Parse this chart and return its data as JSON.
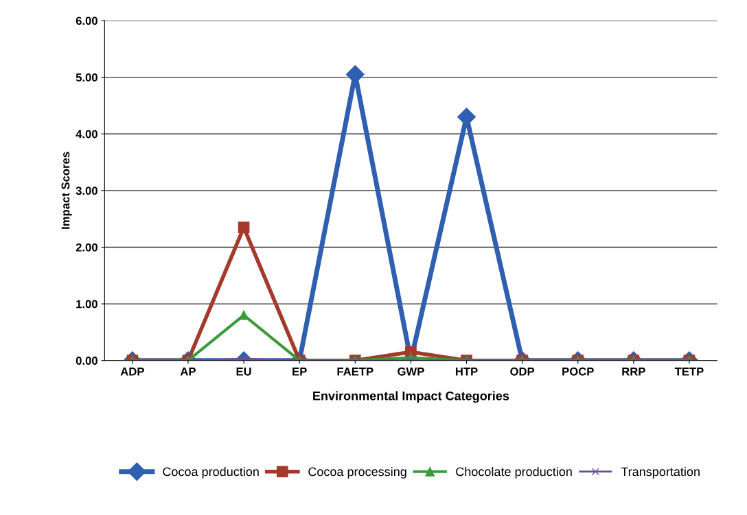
{
  "chart_data": {
    "type": "line",
    "xlabel": "Environmental Impact Categories",
    "ylabel": "Impact Scores",
    "categories": [
      "ADP",
      "AP",
      "EU",
      "EP",
      "FAETP",
      "GWP",
      "HTP",
      "ODP",
      "POCP",
      "RRP",
      "TETP"
    ],
    "series": [
      {
        "name": "Cocoa production",
        "color": "#2e5fb0",
        "marker": "diamond",
        "values": [
          0,
          0,
          0,
          0,
          5.05,
          0,
          4.3,
          0,
          0,
          0,
          0
        ]
      },
      {
        "name": "Cocoa processing",
        "color": "#a33a2a",
        "marker": "square",
        "values": [
          0,
          0,
          2.35,
          0,
          0,
          0.15,
          0,
          0,
          0,
          0,
          0
        ]
      },
      {
        "name": "Chocolate production",
        "color": "#3a9a3a",
        "marker": "triangle",
        "values": [
          0,
          0,
          0.8,
          0,
          0,
          0.05,
          0,
          0,
          0,
          0,
          0
        ]
      },
      {
        "name": "Transportation",
        "color": "#6a4fa0",
        "marker": "cross",
        "values": [
          0,
          0,
          0.03,
          0,
          0,
          0,
          0,
          0,
          0,
          0,
          0
        ]
      }
    ],
    "ylim": [
      0,
      6
    ],
    "yticks": [
      {
        "value": 0,
        "label": "0.00"
      },
      {
        "value": 1,
        "label": "1.00"
      },
      {
        "value": 2,
        "label": "2.00"
      },
      {
        "value": 3,
        "label": "3.00"
      },
      {
        "value": 4,
        "label": "4.00"
      },
      {
        "value": 5,
        "label": "5.00"
      },
      {
        "value": 6,
        "label": "6.00"
      }
    ],
    "grid": "y",
    "legend": "bottom",
    "line_style": "solid"
  }
}
